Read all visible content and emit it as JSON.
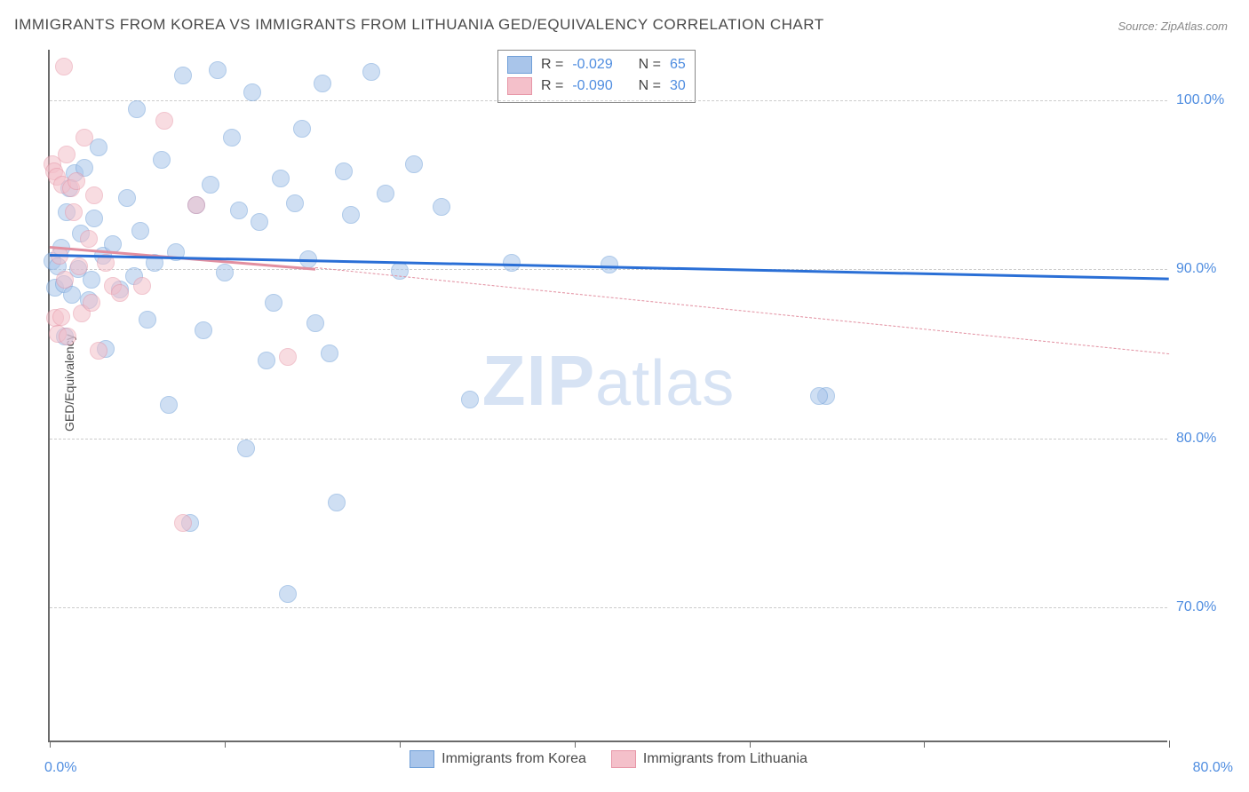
{
  "title": "IMMIGRANTS FROM KOREA VS IMMIGRANTS FROM LITHUANIA GED/EQUIVALENCY CORRELATION CHART",
  "source": "Source: ZipAtlas.com",
  "watermark": {
    "zip": "ZIP",
    "atlas": "atlas"
  },
  "chart": {
    "type": "scatter",
    "ylabel": "GED/Equivalency",
    "background_color": "#ffffff",
    "grid_color": "#cccccc",
    "axis_color": "#6a6a6a",
    "tick_label_color": "#4f8de0",
    "text_color": "#4a4a4a",
    "xlim": [
      0,
      80
    ],
    "ylim": [
      62,
      103
    ],
    "yticks": [
      70,
      80,
      90,
      100
    ],
    "ytick_labels": [
      "70.0%",
      "80.0%",
      "90.0%",
      "100.0%"
    ],
    "xtick_left": "0.0%",
    "xtick_right": "80.0%",
    "xtick_positions": [
      0,
      12.5,
      25,
      37.5,
      50,
      62.5,
      80
    ],
    "marker_radius": 10,
    "marker_opacity": 0.55,
    "series": [
      {
        "name": "Immigrants from Korea",
        "fill": "#a9c5ea",
        "stroke": "#6f9fd8",
        "trend_color": "#2a6fd6",
        "trend_style": "solid",
        "R": "-0.029",
        "N": "65",
        "trend": {
          "x0": 0,
          "y0": 90.9,
          "x1": 80,
          "y1": 89.5
        },
        "points": [
          [
            0.2,
            90.5
          ],
          [
            0.4,
            88.9
          ],
          [
            0.6,
            90.2
          ],
          [
            0.8,
            91.3
          ],
          [
            1.0,
            89.1
          ],
          [
            1.1,
            86.0
          ],
          [
            1.2,
            93.4
          ],
          [
            1.4,
            94.8
          ],
          [
            1.6,
            88.5
          ],
          [
            1.8,
            95.7
          ],
          [
            2.0,
            90.0
          ],
          [
            2.2,
            92.1
          ],
          [
            2.5,
            96.0
          ],
          [
            2.8,
            88.2
          ],
          [
            3.0,
            89.4
          ],
          [
            3.2,
            93.0
          ],
          [
            3.5,
            97.2
          ],
          [
            3.8,
            90.8
          ],
          [
            4.0,
            85.3
          ],
          [
            4.5,
            91.5
          ],
          [
            5.0,
            88.8
          ],
          [
            5.5,
            94.2
          ],
          [
            6.0,
            89.6
          ],
          [
            6.2,
            99.5
          ],
          [
            6.5,
            92.3
          ],
          [
            7.0,
            87.0
          ],
          [
            7.5,
            90.4
          ],
          [
            8.0,
            96.5
          ],
          [
            8.5,
            82.0
          ],
          [
            9.0,
            91.0
          ],
          [
            9.5,
            101.5
          ],
          [
            10.0,
            75.0
          ],
          [
            10.5,
            93.8
          ],
          [
            11.0,
            86.4
          ],
          [
            11.5,
            95.0
          ],
          [
            12.0,
            101.8
          ],
          [
            12.5,
            89.8
          ],
          [
            13.0,
            97.8
          ],
          [
            13.5,
            93.5
          ],
          [
            14.0,
            79.4
          ],
          [
            14.5,
            100.5
          ],
          [
            15.0,
            92.8
          ],
          [
            15.5,
            84.6
          ],
          [
            16.0,
            88.0
          ],
          [
            16.5,
            95.4
          ],
          [
            17.0,
            70.8
          ],
          [
            17.5,
            93.9
          ],
          [
            18.0,
            98.3
          ],
          [
            18.5,
            90.6
          ],
          [
            19.0,
            86.8
          ],
          [
            19.5,
            101.0
          ],
          [
            20.0,
            85.0
          ],
          [
            20.5,
            76.2
          ],
          [
            21.0,
            95.8
          ],
          [
            21.5,
            93.2
          ],
          [
            23.0,
            101.7
          ],
          [
            24.0,
            94.5
          ],
          [
            25.0,
            89.9
          ],
          [
            26.0,
            96.2
          ],
          [
            28.0,
            93.7
          ],
          [
            30.0,
            82.3
          ],
          [
            33.0,
            90.4
          ],
          [
            40.0,
            90.3
          ],
          [
            55.5,
            82.5
          ],
          [
            55.0,
            82.5
          ]
        ]
      },
      {
        "name": "Immigrants from Lithuania",
        "fill": "#f4c0ca",
        "stroke": "#e796a7",
        "trend_color": "#e28fa0",
        "trend_style": "solid_then_dashed",
        "R": "-0.090",
        "N": "30",
        "trend_solid": {
          "x0": 0,
          "y0": 91.4,
          "x1": 19,
          "y1": 90.1
        },
        "trend_dashed": {
          "x0": 19,
          "y0": 90.1,
          "x1": 80,
          "y1": 85.0
        },
        "points": [
          [
            0.2,
            96.2
          ],
          [
            0.3,
            95.8
          ],
          [
            0.4,
            87.1
          ],
          [
            0.5,
            95.5
          ],
          [
            0.6,
            86.2
          ],
          [
            0.7,
            90.8
          ],
          [
            0.8,
            87.2
          ],
          [
            0.9,
            95.0
          ],
          [
            1.0,
            102.0
          ],
          [
            1.1,
            89.4
          ],
          [
            1.2,
            96.8
          ],
          [
            1.3,
            86.0
          ],
          [
            1.5,
            94.8
          ],
          [
            1.7,
            93.4
          ],
          [
            1.9,
            95.2
          ],
          [
            2.1,
            90.2
          ],
          [
            2.3,
            87.4
          ],
          [
            2.5,
            97.8
          ],
          [
            2.8,
            91.8
          ],
          [
            3.0,
            88.0
          ],
          [
            3.2,
            94.4
          ],
          [
            3.5,
            85.2
          ],
          [
            4.0,
            90.4
          ],
          [
            4.5,
            89.0
          ],
          [
            5.0,
            88.6
          ],
          [
            6.6,
            89.0
          ],
          [
            8.2,
            98.8
          ],
          [
            9.5,
            75.0
          ],
          [
            10.5,
            93.8
          ],
          [
            17.0,
            84.8
          ]
        ]
      }
    ]
  },
  "legend": {
    "row_labels": [
      "R =",
      "N ="
    ]
  }
}
